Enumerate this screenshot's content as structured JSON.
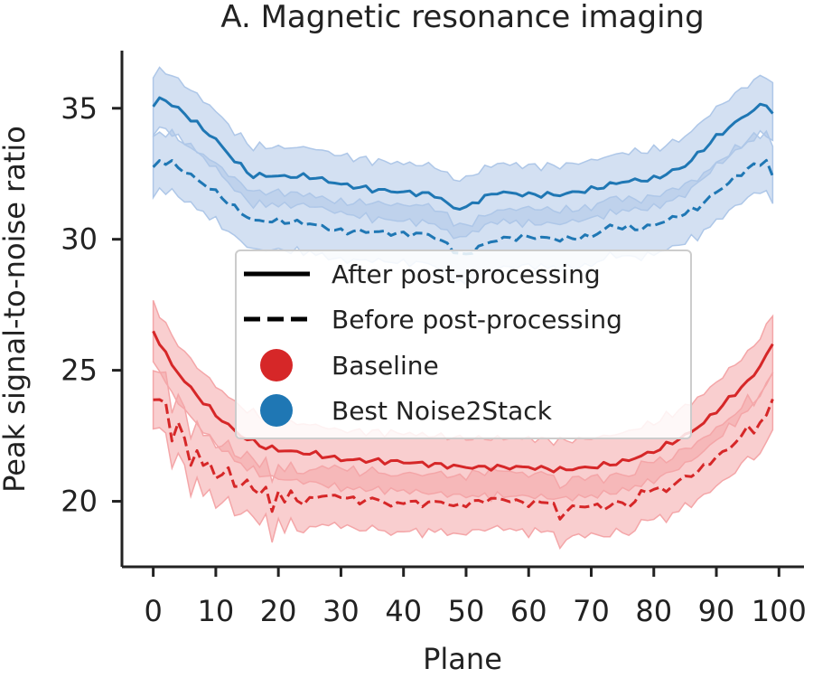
{
  "chart_data": {
    "type": "line",
    "title": "A. Magnetic resonance imaging",
    "xlabel": "Plane",
    "ylabel": "Peak signal-to-noise ratio",
    "xlim": [
      -5,
      104
    ],
    "ylim": [
      17.5,
      37.2
    ],
    "x_ticks": [
      0,
      10,
      20,
      30,
      40,
      50,
      60,
      70,
      80,
      90,
      100
    ],
    "y_ticks": [
      20,
      25,
      30,
      35
    ],
    "band_halfwidth": 1.1,
    "legend": {
      "position": "center",
      "entries": [
        {
          "label": "After post-processing",
          "marker": "solid-line"
        },
        {
          "label": "Before post-processing",
          "marker": "dashed-line"
        },
        {
          "label": "Baseline",
          "marker": "dot",
          "color": "#d62728"
        },
        {
          "label": "Best Noise2Stack",
          "marker": "dot",
          "color": "#1f77b4"
        }
      ]
    },
    "series": [
      {
        "name": "Best Noise2Stack — after post-processing",
        "color": "#1f77b4",
        "dash": "solid",
        "band_color": "#aec7e8",
        "points": [
          [
            0,
            35.0
          ],
          [
            1,
            35.4
          ],
          [
            2,
            35.3
          ],
          [
            5,
            34.8
          ],
          [
            10,
            33.8
          ],
          [
            13,
            33.0
          ],
          [
            16,
            32.4
          ],
          [
            18,
            32.45
          ],
          [
            20,
            32.4
          ],
          [
            25,
            32.4
          ],
          [
            30,
            32.1
          ],
          [
            35,
            31.9
          ],
          [
            40,
            31.8
          ],
          [
            45,
            31.7
          ],
          [
            48,
            31.2
          ],
          [
            50,
            31.2
          ],
          [
            52,
            31.5
          ],
          [
            55,
            31.8
          ],
          [
            60,
            31.7
          ],
          [
            65,
            31.7
          ],
          [
            70,
            31.9
          ],
          [
            75,
            32.2
          ],
          [
            80,
            32.3
          ],
          [
            85,
            32.8
          ],
          [
            90,
            33.9
          ],
          [
            95,
            34.8
          ],
          [
            98,
            35.2
          ],
          [
            99,
            34.8
          ]
        ]
      },
      {
        "name": "Best Noise2Stack — before post-processing",
        "color": "#1f77b4",
        "dash": "dashed",
        "band_color": "#aec7e8",
        "points": [
          [
            0,
            32.7
          ],
          [
            1,
            33.0
          ],
          [
            3,
            32.9
          ],
          [
            5,
            32.6
          ],
          [
            10,
            31.8
          ],
          [
            13,
            31.2
          ],
          [
            16,
            30.7
          ],
          [
            20,
            30.7
          ],
          [
            25,
            30.6
          ],
          [
            30,
            30.3
          ],
          [
            35,
            30.3
          ],
          [
            40,
            30.2
          ],
          [
            44,
            30.2
          ],
          [
            47,
            29.8
          ],
          [
            49,
            29.4
          ],
          [
            50,
            29.4
          ],
          [
            52,
            29.7
          ],
          [
            55,
            30.0
          ],
          [
            60,
            30.1
          ],
          [
            65,
            30.0
          ],
          [
            70,
            30.1
          ],
          [
            73,
            30.5
          ],
          [
            78,
            30.4
          ],
          [
            82,
            30.7
          ],
          [
            87,
            31.2
          ],
          [
            90,
            31.8
          ],
          [
            95,
            32.7
          ],
          [
            98,
            33.0
          ],
          [
            99,
            32.4
          ]
        ]
      },
      {
        "name": "Baseline — after post-processing",
        "color": "#d62728",
        "dash": "solid",
        "band_color": "#f4a6a8",
        "points": [
          [
            0,
            26.5
          ],
          [
            3,
            25.2
          ],
          [
            6,
            24.3
          ],
          [
            10,
            23.3
          ],
          [
            14,
            22.5
          ],
          [
            18,
            22.05
          ],
          [
            22,
            21.9
          ],
          [
            26,
            21.8
          ],
          [
            30,
            21.6
          ],
          [
            35,
            21.55
          ],
          [
            40,
            21.5
          ],
          [
            45,
            21.4
          ],
          [
            50,
            21.3
          ],
          [
            55,
            21.3
          ],
          [
            60,
            21.3
          ],
          [
            65,
            21.2
          ],
          [
            70,
            21.3
          ],
          [
            75,
            21.5
          ],
          [
            80,
            21.9
          ],
          [
            85,
            22.5
          ],
          [
            88,
            23.0
          ],
          [
            92,
            23.9
          ],
          [
            96,
            24.8
          ],
          [
            99,
            26.0
          ]
        ]
      },
      {
        "name": "Baseline — before post-processing",
        "color": "#d62728",
        "dash": "dashed",
        "band_color": "#f4a6a8",
        "points": [
          [
            0,
            23.9
          ],
          [
            1,
            23.9
          ],
          [
            2,
            23.7
          ],
          [
            3,
            22.3
          ],
          [
            4,
            23.1
          ],
          [
            5,
            22.3
          ],
          [
            6,
            21.4
          ],
          [
            7,
            22.0
          ],
          [
            8,
            21.3
          ],
          [
            9,
            21.5
          ],
          [
            10,
            20.9
          ],
          [
            12,
            21.2
          ],
          [
            13,
            20.6
          ],
          [
            15,
            20.7
          ],
          [
            17,
            20.3
          ],
          [
            18,
            20.5
          ],
          [
            19,
            19.6
          ],
          [
            20,
            20.4
          ],
          [
            21,
            20.0
          ],
          [
            22,
            20.3
          ],
          [
            24,
            19.9
          ],
          [
            26,
            20.2
          ],
          [
            30,
            20.2
          ],
          [
            33,
            20.0
          ],
          [
            36,
            20.1
          ],
          [
            38,
            19.8
          ],
          [
            40,
            20.0
          ],
          [
            43,
            19.9
          ],
          [
            46,
            20.0
          ],
          [
            48,
            19.8
          ],
          [
            50,
            19.9
          ],
          [
            52,
            20.0
          ],
          [
            55,
            20.1
          ],
          [
            58,
            20.0
          ],
          [
            60,
            19.9
          ],
          [
            63,
            20.0
          ],
          [
            64,
            19.9
          ],
          [
            65,
            19.3
          ],
          [
            66,
            19.6
          ],
          [
            67,
            19.9
          ],
          [
            68,
            19.7
          ],
          [
            70,
            19.9
          ],
          [
            72,
            19.7
          ],
          [
            74,
            20.0
          ],
          [
            76,
            19.8
          ],
          [
            78,
            20.3
          ],
          [
            80,
            20.5
          ],
          [
            82,
            20.4
          ],
          [
            84,
            20.8
          ],
          [
            86,
            21.0
          ],
          [
            88,
            21.3
          ],
          [
            90,
            21.7
          ],
          [
            92,
            22.0
          ],
          [
            94,
            22.5
          ],
          [
            95,
            22.8
          ],
          [
            96,
            22.7
          ],
          [
            97,
            23.0
          ],
          [
            98,
            23.2
          ],
          [
            99,
            23.9
          ]
        ]
      }
    ]
  }
}
